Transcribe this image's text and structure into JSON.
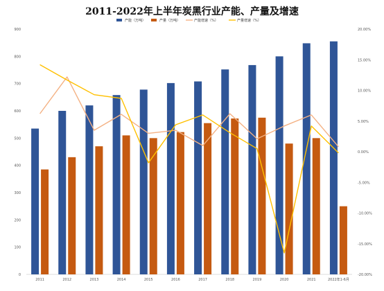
{
  "chart_data": {
    "type": "bar",
    "title": "2011-2022年上半年炭黑行业产能、产量及增速",
    "categories": [
      "2011",
      "2012",
      "2013",
      "2014",
      "2015",
      "2016",
      "2017",
      "2018",
      "2019",
      "2020",
      "2021",
      "2022年1-6月"
    ],
    "series": [
      {
        "name": "产能（万吨）",
        "type": "bar",
        "axis": "left",
        "color": "#2f5597",
        "values": [
          535,
          600,
          620,
          658,
          678,
          702,
          708,
          752,
          768,
          800,
          848,
          855
        ]
      },
      {
        "name": "产量（万吨）",
        "type": "bar",
        "axis": "left",
        "color": "#c55a11",
        "values": [
          385,
          430,
          470,
          510,
          500,
          522,
          555,
          572,
          575,
          480,
          500,
          250
        ]
      },
      {
        "name": "产能增速（%）",
        "type": "line",
        "axis": "right",
        "color": "#f4b183",
        "values": [
          6.2,
          12.2,
          3.5,
          6.1,
          3.0,
          3.5,
          1.0,
          6.2,
          2.1,
          4.2,
          6.0,
          0.8
        ]
      },
      {
        "name": "产量增速（%）",
        "type": "line",
        "axis": "right",
        "color": "#ffc000",
        "values": [
          14.2,
          11.7,
          9.3,
          8.7,
          -1.8,
          4.4,
          6.0,
          3.1,
          0.5,
          -16.5,
          4.2,
          -0.2
        ]
      }
    ],
    "y_left": {
      "ylim": [
        0,
        900
      ],
      "ticks": [
        "0",
        "100",
        "200",
        "300",
        "400",
        "500",
        "600",
        "700",
        "800",
        "900"
      ]
    },
    "y_right": {
      "ylim": [
        -20,
        20
      ],
      "ticks": [
        "-20.00%",
        "-15.00%",
        "-10.00%",
        "-5.00%",
        "0.00%",
        "5.00%",
        "10.00%",
        "15.00%",
        "20.00%"
      ]
    },
    "legend_position": "top",
    "grid": false
  }
}
